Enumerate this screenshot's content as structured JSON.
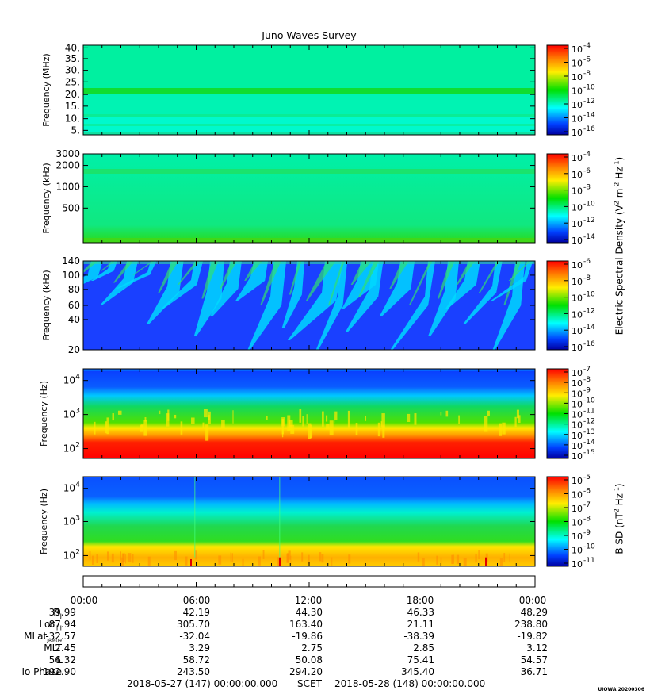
{
  "title": "Juno Waves Survey",
  "colors": {
    "red": "#ff1a00",
    "orange": "#ff9900",
    "yellow": "#ffee00",
    "green": "#1fd12a",
    "cyan": "#00ffe6",
    "blue": "#1a48ff",
    "navy": "#0000b0"
  },
  "panels": [
    {
      "id": "hfr-mhz",
      "ylabel": "Frequency (MHz)",
      "scale": "linear",
      "ylim": [
        4,
        41
      ],
      "yticks": [
        "40.",
        "35.",
        "30.",
        "25.",
        "20.",
        "15.",
        "10.",
        "5."
      ],
      "cbar": {
        "labels": [
          "10",
          "10",
          "10",
          "10",
          "10",
          "10",
          "10"
        ],
        "exps": [
          "-4",
          "-6",
          "-8",
          "-10",
          "-12",
          "-14",
          "-16"
        ],
        "range_exp": [
          -4,
          -17
        ]
      }
    },
    {
      "id": "hfr-khz",
      "ylabel": "Frequency (kHz)",
      "scale": "log",
      "ylim": [
        150,
        3000
      ],
      "yticks": [
        "3000",
        "2000",
        "1000",
        "500"
      ],
      "cbar": {
        "labels": [
          "10",
          "10",
          "10",
          "10",
          "10",
          "10"
        ],
        "exps": [
          "-4",
          "-6",
          "-8",
          "-10",
          "-12",
          "-14"
        ],
        "range_exp": [
          -3.5,
          -15
        ]
      }
    },
    {
      "id": "lfr-khz",
      "ylabel": "Frequency (kHz)",
      "scale": "linear",
      "ylim": [
        20,
        140
      ],
      "yticks": [
        "140",
        "100",
        "80",
        "60",
        "40",
        "20"
      ],
      "cbar": {
        "labels": [
          "10",
          "10",
          "10",
          "10",
          "10",
          "10"
        ],
        "exps": [
          "-6",
          "-8",
          "-10",
          "-12",
          "-14",
          "-16"
        ],
        "range_exp": [
          -6,
          -16
        ]
      }
    },
    {
      "id": "lfr-hz-e",
      "ylabel": "Frequency (Hz)",
      "scale": "log",
      "ylim": [
        70,
        20000
      ],
      "yticks": [
        "10",
        "10",
        "10"
      ],
      "ytick_exps": [
        "4",
        "3",
        "2"
      ],
      "cbar": {
        "labels": [
          "10",
          "10",
          "10",
          "10",
          "10",
          "10",
          "10",
          "10",
          "10"
        ],
        "exps": [
          "-7",
          "-8",
          "-9",
          "-10",
          "-11",
          "-12",
          "-13",
          "-14",
          "-15"
        ],
        "range_exp": [
          -7,
          -15
        ]
      }
    },
    {
      "id": "lfr-hz-b",
      "ylabel": "Frequency (Hz)",
      "scale": "log",
      "ylim": [
        50,
        25000
      ],
      "yticks": [
        "10",
        "10",
        "10"
      ],
      "ytick_exps": [
        "4",
        "3",
        "2"
      ],
      "cbar": {
        "labels": [
          "10",
          "10",
          "10",
          "10",
          "10",
          "10",
          "10"
        ],
        "exps": [
          "-5",
          "-6",
          "-7",
          "-8",
          "-9",
          "-10",
          "-11"
        ],
        "range_exp": [
          -4.5,
          -11
        ]
      }
    }
  ],
  "cbar_titles": {
    "electric": "Electric Spectral Density (V",
    "electric_sup1": "2",
    "electric_mid": " m",
    "electric_sup2": "-2",
    "electric_mid2": " Hz",
    "electric_sup3": "-1",
    "electric_end": ")",
    "magnetic": "B SD (nT",
    "magnetic_sup1": "2",
    "magnetic_mid": " Hz",
    "magnetic_sup2": "-1",
    "magnetic_end": ")"
  },
  "time_labels": [
    "00:00",
    "06:00",
    "12:00",
    "18:00",
    "00:00"
  ],
  "ephemeris": {
    "labels": [
      "R",
      "Lon",
      "MLat",
      "MLT",
      "L",
      "Io Phase"
    ],
    "label_subs": [
      "J",
      "III",
      "JRM09",
      "",
      "",
      ""
    ],
    "rows": [
      [
        "39.99",
        "42.19",
        "44.30",
        "46.33",
        "48.29"
      ],
      [
        "87.94",
        "305.70",
        "163.40",
        "21.11",
        "238.80"
      ],
      [
        "-32.57",
        "-32.04",
        "-19.86",
        "-38.39",
        "-19.82"
      ],
      [
        "2.45",
        "3.29",
        "2.75",
        "2.85",
        "3.12"
      ],
      [
        "56.32",
        "58.72",
        "50.08",
        "75.41",
        "54.57"
      ],
      [
        "192.90",
        "243.50",
        "294.20",
        "345.40",
        "36.71"
      ]
    ]
  },
  "footer": {
    "start": "2018-05-27 (147) 00:00:00.000",
    "scet": "SCET",
    "end": "2018-05-28 (148) 00:00:00.000"
  },
  "credit": "UIOWA 20200306"
}
